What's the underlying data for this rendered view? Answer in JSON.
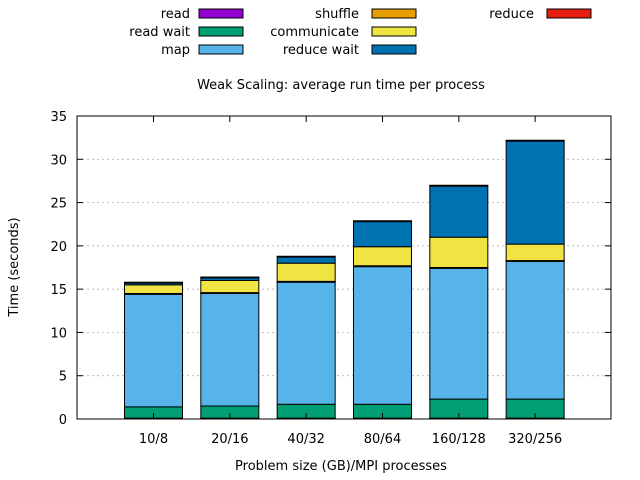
{
  "chart_data": {
    "type": "bar",
    "stacked": true,
    "title": "Weak Scaling: average run time per process",
    "xlabel": "Problem size (GB)/MPI processes",
    "ylabel": "Time (seconds)",
    "ylim": [
      0,
      35
    ],
    "yticks": [
      0,
      5,
      10,
      15,
      20,
      25,
      30,
      35
    ],
    "grid": true,
    "legend_position": "top",
    "categories": [
      "10/8",
      "20/16",
      "40/32",
      "80/64",
      "160/128",
      "320/256"
    ],
    "series": [
      {
        "name": "read",
        "color": "#9400d3",
        "values": [
          0.1,
          0.1,
          0.1,
          0.1,
          0.1,
          0.1
        ]
      },
      {
        "name": "read wait",
        "color": "#009e73",
        "values": [
          1.3,
          1.4,
          1.6,
          1.6,
          2.2,
          2.2
        ]
      },
      {
        "name": "map",
        "color": "#56b4e9",
        "values": [
          13.0,
          13.0,
          14.1,
          15.9,
          15.1,
          15.9
        ]
      },
      {
        "name": "shuffle",
        "color": "#e69f00",
        "values": [
          0.1,
          0.1,
          0.1,
          0.1,
          0.1,
          0.1
        ]
      },
      {
        "name": "communicate",
        "color": "#f0e442",
        "values": [
          1.0,
          1.4,
          2.1,
          2.2,
          3.5,
          1.9
        ]
      },
      {
        "name": "reduce wait",
        "color": "#0072b2",
        "values": [
          0.2,
          0.3,
          0.7,
          2.9,
          5.9,
          11.9
        ]
      },
      {
        "name": "reduce",
        "color": "#e51e10",
        "values": [
          0.1,
          0.1,
          0.1,
          0.1,
          0.1,
          0.1
        ]
      }
    ]
  }
}
